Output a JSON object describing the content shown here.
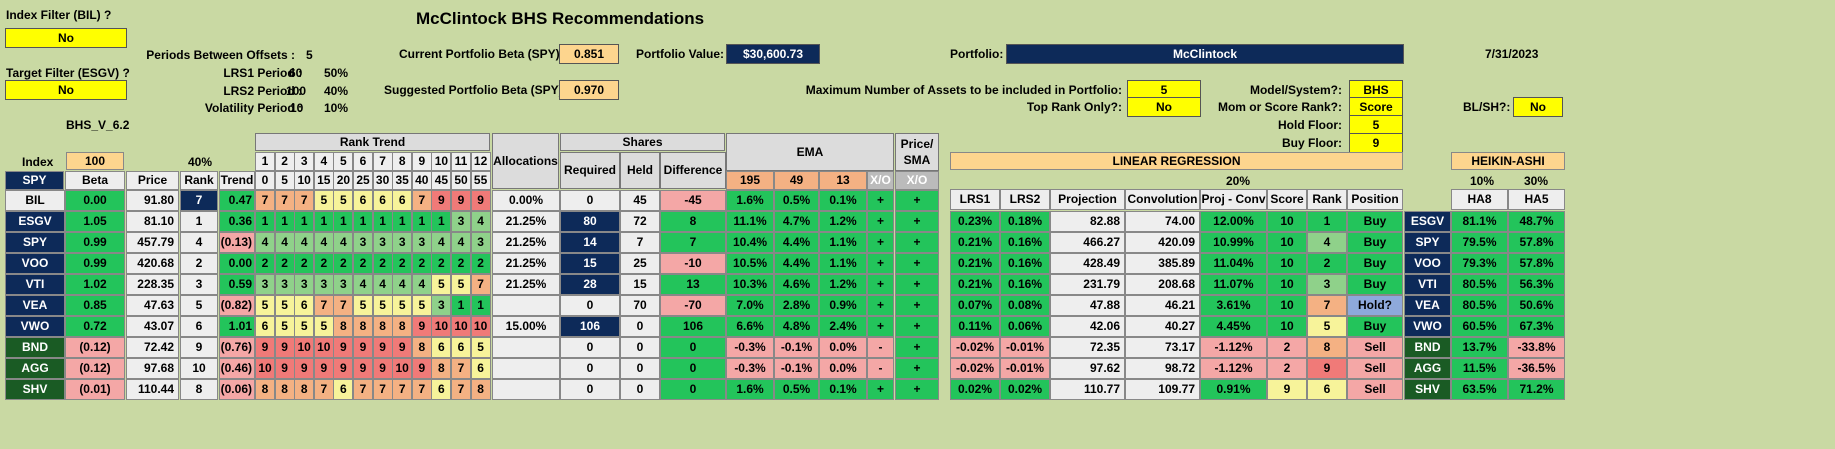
{
  "title": "McClintock BHS Recommendations",
  "index_filter": {
    "label": "Index Filter (BIL) ?",
    "value": "No"
  },
  "target_filter": {
    "label": "Target Filter (ESGV) ?",
    "value": "No"
  },
  "version": "BHS_V_6.2",
  "periods_between_offsets": {
    "label": "Periods Between Offsets :",
    "value": "5"
  },
  "lrs1_period": {
    "label": "LRS1 Period :",
    "value": "60",
    "pct": "50%"
  },
  "lrs2_period": {
    "label": "LRS2 Period :",
    "value": "100",
    "pct": "40%"
  },
  "volatility_period": {
    "label": "Volatility Period :",
    "value": "10",
    "pct": "10%"
  },
  "current_beta": {
    "label": "Current Portfolio Beta (SPY):",
    "value": "0.851"
  },
  "suggested_beta": {
    "label": "Suggested Portfolio Beta (SPY):",
    "value": "0.970"
  },
  "portfolio_value": {
    "label": "Portfolio Value:",
    "value": "$30,600.73"
  },
  "portfolio": {
    "label": "Portfolio:",
    "value": "McClintock"
  },
  "date": "7/31/2023",
  "max_assets": {
    "label": "Maximum Number of Assets to be included in Portfolio:",
    "value": "5"
  },
  "top_rank_only": {
    "label": "Top Rank Only?:",
    "value": "No"
  },
  "model_system": {
    "label": "Model/System?:",
    "value": "BHS"
  },
  "mom_or_score": {
    "label": "Mom or Score Rank?:",
    "value": "Score"
  },
  "hold_floor": {
    "label": "Hold Floor:",
    "value": "5"
  },
  "buy_floor": {
    "label": "Buy Floor:",
    "value": "9"
  },
  "bl_sh": {
    "label": "BL/SH?:",
    "value": "No"
  },
  "headers": {
    "index": "Index",
    "index_val": "100",
    "forty_pct": "40%",
    "beta": "Beta",
    "price": "Price",
    "rank": "Rank",
    "trend": "Trend",
    "rank_trend": "Rank Trend",
    "allocations": "Allocations",
    "shares": "Shares",
    "required": "Required",
    "held": "Held",
    "difference": "Difference",
    "ema": "EMA",
    "ema195": "195",
    "ema49": "49",
    "ema13": "13",
    "xo": "X/O",
    "price_sma": "Price/ SMA",
    "xo2": "X/O",
    "linreg": "LINEAR REGRESSION",
    "twenty_pct": "20%",
    "lrs1": "LRS1",
    "lrs2": "LRS2",
    "projection": "Projection",
    "convolution": "Convolution",
    "proj_conv": "Proj - Conv",
    "score": "Score",
    "rank2": "Rank",
    "position": "Position",
    "heikin": "HEIKIN-ASHI",
    "ten_pct": "10%",
    "thirty_pct": "30%",
    "ha8": "HA8",
    "ha5": "HA5",
    "spy": "SPY"
  },
  "rank_trend_nums": [
    "1",
    "2",
    "3",
    "4",
    "5",
    "6",
    "7",
    "8",
    "9",
    "10",
    "11",
    "12"
  ],
  "rank_trend_offsets": [
    "0",
    "5",
    "10",
    "15",
    "20",
    "25",
    "30",
    "35",
    "40",
    "45",
    "50",
    "55"
  ],
  "rows": [
    {
      "ticker": "BIL",
      "beta": "0.00",
      "price": "91.80",
      "rank": "7",
      "trend": "0.47",
      "rt": [
        "7",
        "7",
        "7",
        "5",
        "5",
        "6",
        "6",
        "6",
        "7",
        "9",
        "9",
        "9"
      ],
      "alloc": "0.00%",
      "req": "0",
      "held": "45",
      "diff": "-45",
      "e195": "1.6%",
      "e49": "0.5%",
      "e13": "0.1%",
      "xo": "+",
      "xo2": "+",
      "lrs1": "",
      "lrs2": "",
      "proj": "",
      "conv": "",
      "pc": "",
      "score": "",
      "rank2": "",
      "pos": "",
      "t2": "",
      "ha8": "",
      "ha5": ""
    },
    {
      "ticker": "ESGV",
      "beta": "1.05",
      "price": "81.10",
      "rank": "1",
      "trend": "0.36",
      "rt": [
        "1",
        "1",
        "1",
        "1",
        "1",
        "1",
        "1",
        "1",
        "1",
        "1",
        "3",
        "4"
      ],
      "alloc": "21.25%",
      "req": "80",
      "held": "72",
      "diff": "8",
      "e195": "11.1%",
      "e49": "4.7%",
      "e13": "1.2%",
      "xo": "+",
      "xo2": "+",
      "lrs1": "0.23%",
      "lrs2": "0.18%",
      "proj": "82.88",
      "conv": "74.00",
      "pc": "12.00%",
      "score": "10",
      "rank2": "1",
      "pos": "Buy",
      "t2": "ESGV",
      "ha8": "81.1%",
      "ha5": "48.7%"
    },
    {
      "ticker": "SPY",
      "beta": "0.99",
      "price": "457.79",
      "rank": "4",
      "trend": "(0.13)",
      "rt": [
        "4",
        "4",
        "4",
        "4",
        "4",
        "3",
        "3",
        "3",
        "3",
        "4",
        "4",
        "3"
      ],
      "alloc": "21.25%",
      "req": "14",
      "held": "7",
      "diff": "7",
      "e195": "10.4%",
      "e49": "4.4%",
      "e13": "1.1%",
      "xo": "+",
      "xo2": "+",
      "lrs1": "0.21%",
      "lrs2": "0.16%",
      "proj": "466.27",
      "conv": "420.09",
      "pc": "10.99%",
      "score": "10",
      "rank2": "4",
      "pos": "Buy",
      "t2": "SPY",
      "ha8": "79.5%",
      "ha5": "57.8%"
    },
    {
      "ticker": "VOO",
      "beta": "0.99",
      "price": "420.68",
      "rank": "2",
      "trend": "0.00",
      "rt": [
        "2",
        "2",
        "2",
        "2",
        "2",
        "2",
        "2",
        "2",
        "2",
        "2",
        "2",
        "2"
      ],
      "alloc": "21.25%",
      "req": "15",
      "held": "25",
      "diff": "-10",
      "e195": "10.5%",
      "e49": "4.4%",
      "e13": "1.1%",
      "xo": "+",
      "xo2": "+",
      "lrs1": "0.21%",
      "lrs2": "0.16%",
      "proj": "428.49",
      "conv": "385.89",
      "pc": "11.04%",
      "score": "10",
      "rank2": "2",
      "pos": "Buy",
      "t2": "VOO",
      "ha8": "79.3%",
      "ha5": "57.8%"
    },
    {
      "ticker": "VTI",
      "beta": "1.02",
      "price": "228.35",
      "rank": "3",
      "trend": "0.59",
      "rt": [
        "3",
        "3",
        "3",
        "3",
        "3",
        "4",
        "4",
        "4",
        "4",
        "5",
        "5",
        "7"
      ],
      "alloc": "21.25%",
      "req": "28",
      "held": "15",
      "diff": "13",
      "e195": "10.3%",
      "e49": "4.6%",
      "e13": "1.2%",
      "xo": "+",
      "xo2": "+",
      "lrs1": "0.21%",
      "lrs2": "0.16%",
      "proj": "231.79",
      "conv": "208.68",
      "pc": "11.07%",
      "score": "10",
      "rank2": "3",
      "pos": "Buy",
      "t2": "VTI",
      "ha8": "80.5%",
      "ha5": "56.3%"
    },
    {
      "ticker": "VEA",
      "beta": "0.85",
      "price": "47.63",
      "rank": "5",
      "trend": "(0.82)",
      "rt": [
        "5",
        "5",
        "6",
        "7",
        "7",
        "5",
        "5",
        "5",
        "5",
        "3",
        "1",
        "1"
      ],
      "alloc": "",
      "req": "0",
      "held": "70",
      "diff": "-70",
      "e195": "7.0%",
      "e49": "2.8%",
      "e13": "0.9%",
      "xo": "+",
      "xo2": "+",
      "lrs1": "0.07%",
      "lrs2": "0.08%",
      "proj": "47.88",
      "conv": "46.21",
      "pc": "3.61%",
      "score": "10",
      "rank2": "7",
      "pos": "Hold?",
      "t2": "VEA",
      "ha8": "80.5%",
      "ha5": "50.6%"
    },
    {
      "ticker": "VWO",
      "beta": "0.72",
      "price": "43.07",
      "rank": "6",
      "trend": "1.01",
      "rt": [
        "6",
        "5",
        "5",
        "5",
        "8",
        "8",
        "8",
        "8",
        "9",
        "10",
        "10",
        "10"
      ],
      "alloc": "15.00%",
      "req": "106",
      "held": "0",
      "diff": "106",
      "e195": "6.6%",
      "e49": "4.8%",
      "e13": "2.4%",
      "xo": "+",
      "xo2": "+",
      "lrs1": "0.11%",
      "lrs2": "0.06%",
      "proj": "42.06",
      "conv": "40.27",
      "pc": "4.45%",
      "score": "10",
      "rank2": "5",
      "pos": "Buy",
      "t2": "VWO",
      "ha8": "60.5%",
      "ha5": "67.3%"
    },
    {
      "ticker": "BND",
      "beta": "(0.12)",
      "price": "72.42",
      "rank": "9",
      "trend": "(0.76)",
      "rt": [
        "9",
        "9",
        "10",
        "10",
        "9",
        "9",
        "9",
        "9",
        "8",
        "6",
        "6",
        "5"
      ],
      "alloc": "",
      "req": "0",
      "held": "0",
      "diff": "0",
      "e195": "-0.3%",
      "e49": "-0.1%",
      "e13": "0.0%",
      "xo": "-",
      "xo2": "+",
      "lrs1": "-0.02%",
      "lrs2": "-0.01%",
      "proj": "72.35",
      "conv": "73.17",
      "pc": "-1.12%",
      "score": "2",
      "rank2": "8",
      "pos": "Sell",
      "t2": "BND",
      "ha8": "13.7%",
      "ha5": "-33.8%"
    },
    {
      "ticker": "AGG",
      "beta": "(0.12)",
      "price": "97.68",
      "rank": "10",
      "trend": "(0.46)",
      "rt": [
        "10",
        "9",
        "9",
        "9",
        "9",
        "9",
        "9",
        "10",
        "9",
        "8",
        "7",
        "6"
      ],
      "alloc": "",
      "req": "0",
      "held": "0",
      "diff": "0",
      "e195": "-0.3%",
      "e49": "-0.1%",
      "e13": "0.0%",
      "xo": "-",
      "xo2": "+",
      "lrs1": "-0.02%",
      "lrs2": "-0.01%",
      "proj": "97.62",
      "conv": "98.72",
      "pc": "-1.12%",
      "score": "2",
      "rank2": "9",
      "pos": "Sell",
      "t2": "AGG",
      "ha8": "11.5%",
      "ha5": "-36.5%"
    },
    {
      "ticker": "SHV",
      "beta": "(0.01)",
      "price": "110.44",
      "rank": "8",
      "trend": "(0.06)",
      "rt": [
        "8",
        "8",
        "8",
        "7",
        "6",
        "7",
        "7",
        "7",
        "7",
        "6",
        "7",
        "8"
      ],
      "alloc": "",
      "req": "0",
      "held": "0",
      "diff": "0",
      "e195": "1.6%",
      "e49": "0.5%",
      "e13": "0.1%",
      "xo": "+",
      "xo2": "+",
      "lrs1": "0.02%",
      "lrs2": "0.02%",
      "proj": "110.77",
      "conv": "109.77",
      "pc": "0.91%",
      "score": "9",
      "rank2": "6",
      "pos": "Sell",
      "t2": "SHV",
      "ha8": "63.5%",
      "ha5": "71.2%"
    }
  ]
}
